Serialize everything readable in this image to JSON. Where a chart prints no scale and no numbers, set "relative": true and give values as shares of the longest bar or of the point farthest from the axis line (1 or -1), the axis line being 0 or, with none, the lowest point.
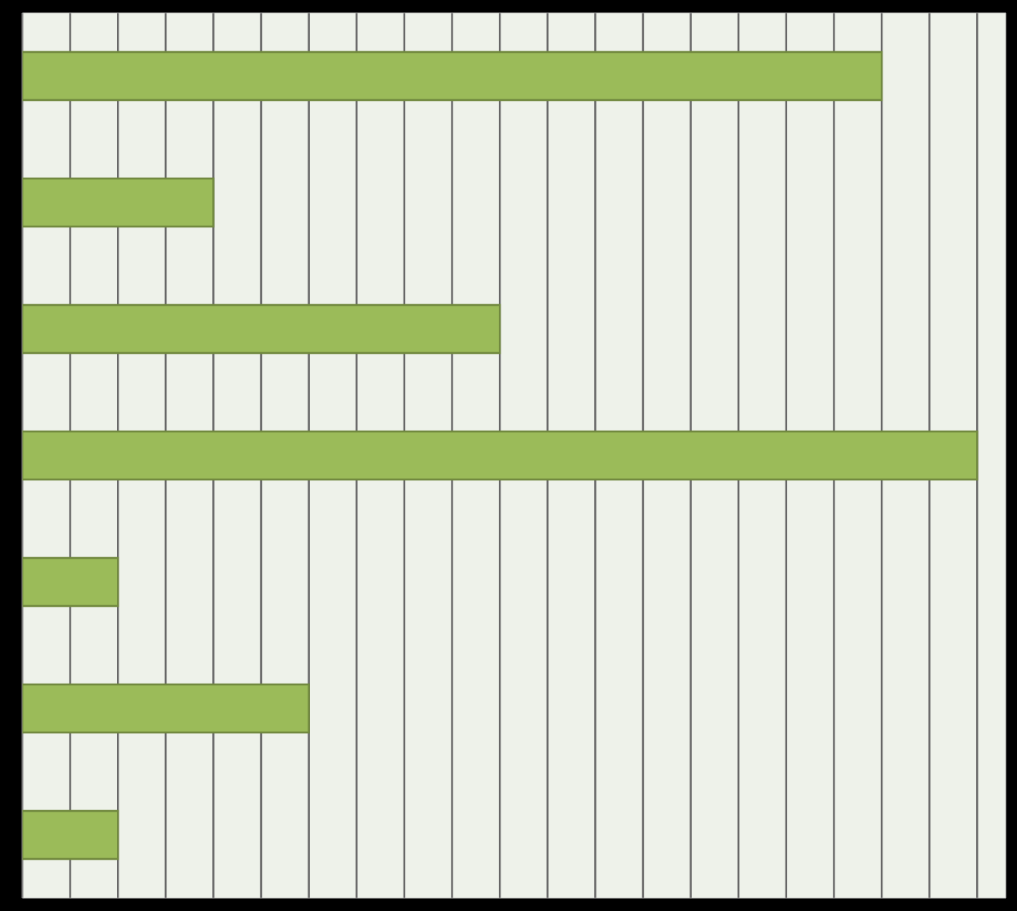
{
  "chart_data": {
    "type": "bar",
    "orientation": "horizontal",
    "relative": true,
    "grid": "x",
    "categories": [
      null,
      null,
      null,
      null,
      null,
      null,
      null
    ],
    "values": [
      0.9,
      0.2,
      0.5,
      1,
      0.1,
      0.3,
      0.1
    ],
    "color": "#9bbb59"
  }
}
